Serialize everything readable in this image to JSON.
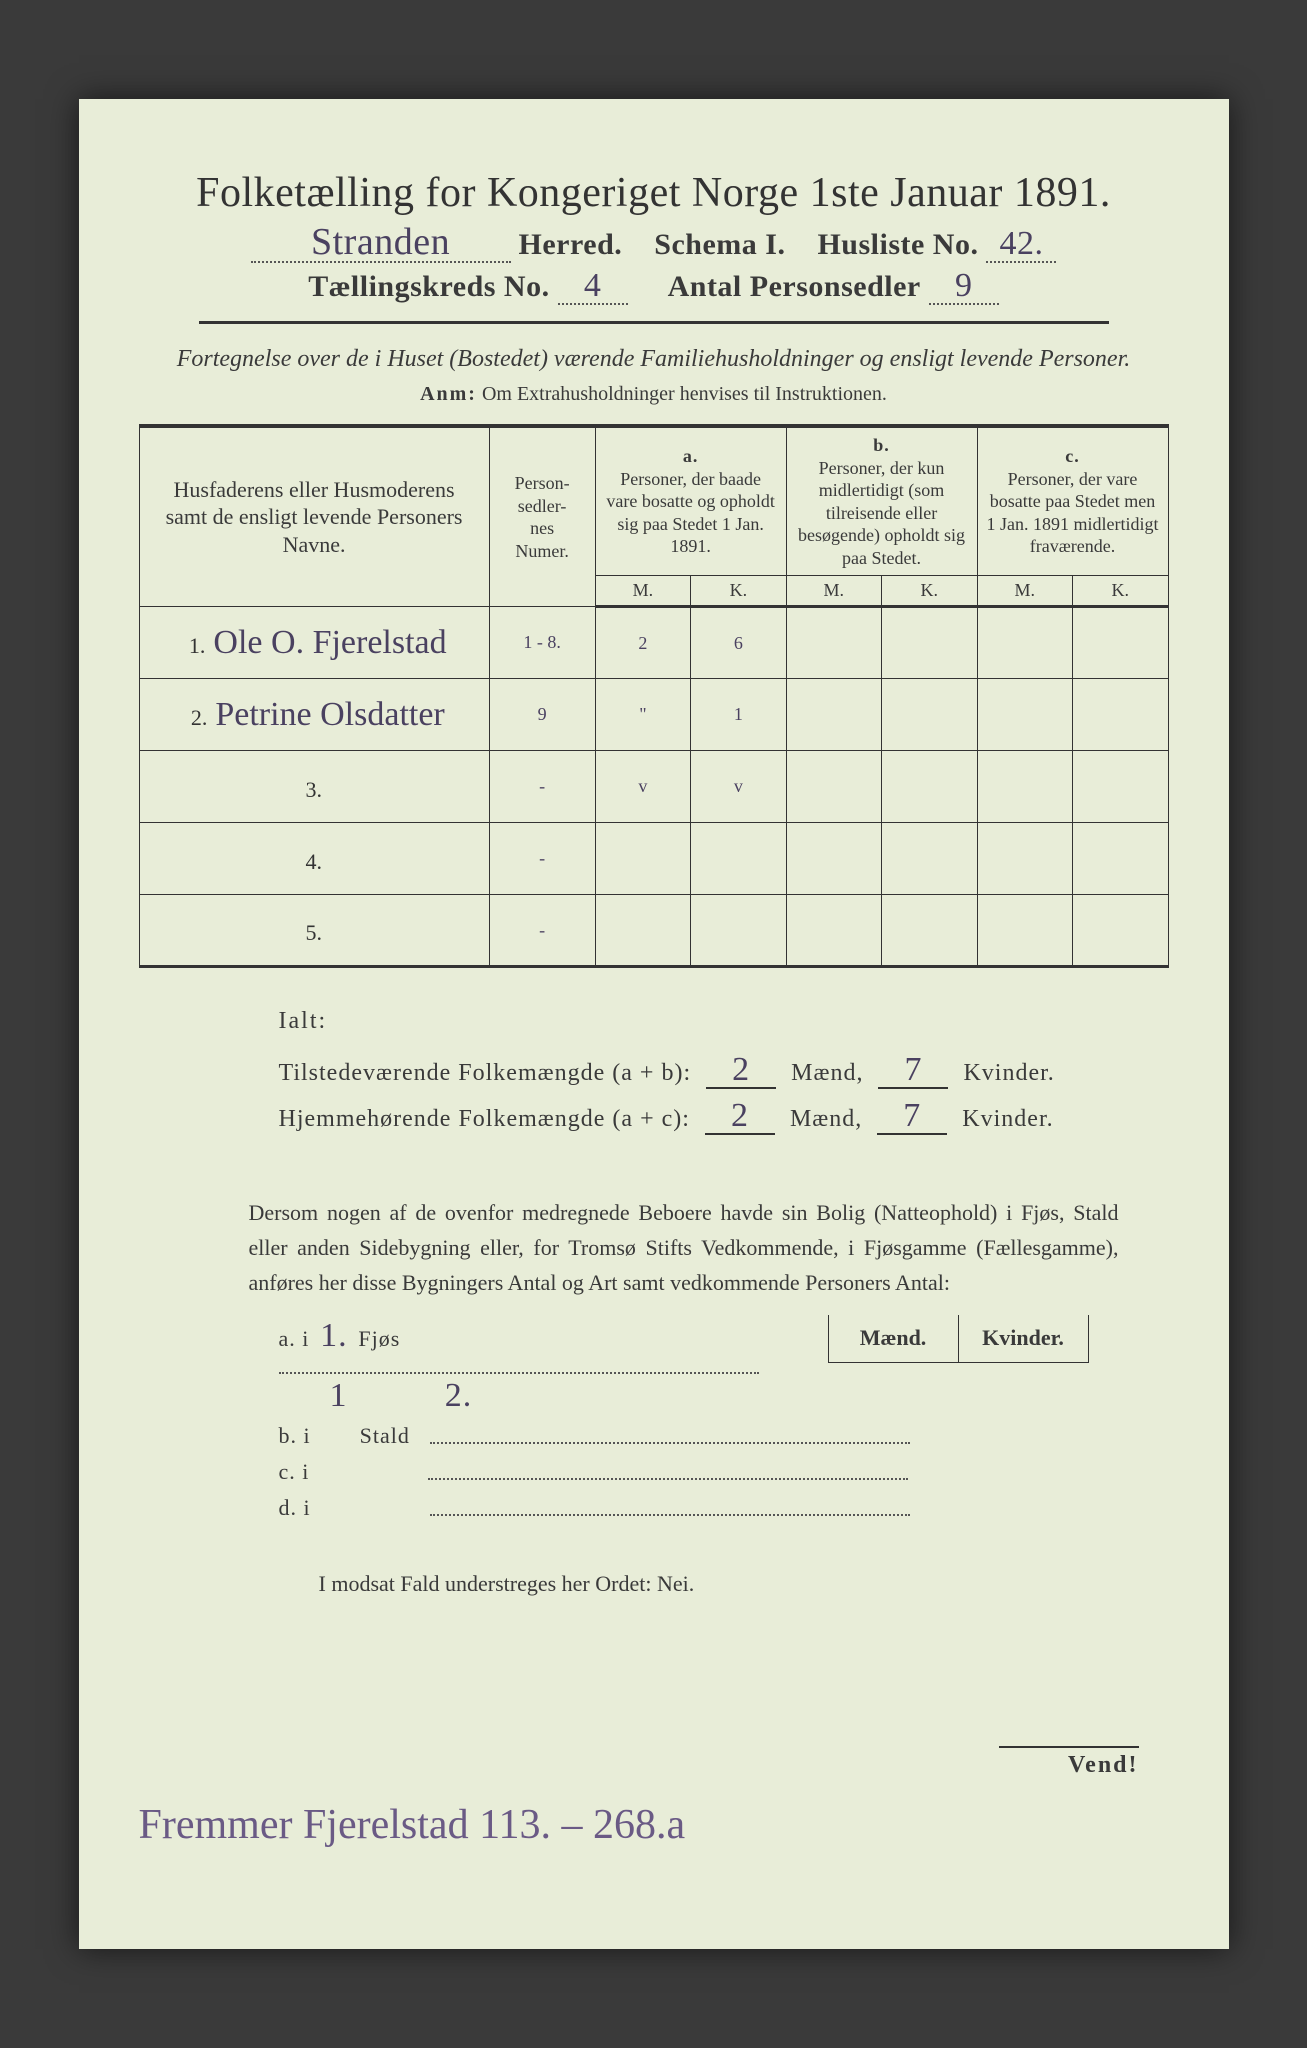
{
  "title": "Folketælling for Kongeriget Norge 1ste Januar 1891.",
  "header": {
    "herred_value": "Stranden",
    "herred_label": "Herred.",
    "schema_label": "Schema I.",
    "husliste_label": "Husliste No.",
    "husliste_value": "42.",
    "tk_label": "Tællingskreds No.",
    "tk_value": "4",
    "antal_label": "Antal Personsedler",
    "antal_value": "9"
  },
  "subtitle": "Fortegnelse over de i Huset (Bostedet) værende Familiehusholdninger og ensligt levende Personer.",
  "anm": {
    "label": "Anm:",
    "text": "Om Extrahusholdninger henvises til Instruktionen."
  },
  "table": {
    "col_name": "Husfaderens eller Husmoderens samt de ensligt levende Personers Navne.",
    "col_pnum": "Person-\nsedler-\nnes\nNumer.",
    "col_a_label": "a.",
    "col_a_text": "Personer, der baade vare bosatte og opholdt sig paa Stedet 1 Jan. 1891.",
    "col_b_label": "b.",
    "col_b_text": "Personer, der kun midlertidigt (som tilreisende eller besøgende) opholdt sig paa Stedet.",
    "col_c_label": "c.",
    "col_c_text": "Personer, der vare bosatte paa Stedet men 1 Jan. 1891 midlertidigt fraværende.",
    "m": "M.",
    "k": "K.",
    "rows": [
      {
        "n": "1.",
        "name": "Ole O. Fjerelstad",
        "pnum": "1 - 8.",
        "am": "2",
        "ak": "6",
        "bm": "",
        "bk": "",
        "cm": "",
        "ck": ""
      },
      {
        "n": "2.",
        "name": "Petrine Olsdatter",
        "pnum": "9",
        "am": "\"",
        "ak": "1",
        "bm": "",
        "bk": "",
        "cm": "",
        "ck": ""
      },
      {
        "n": "3.",
        "name": "",
        "pnum": "-",
        "am": "v",
        "ak": "v",
        "bm": "",
        "bk": "",
        "cm": "",
        "ck": ""
      },
      {
        "n": "4.",
        "name": "",
        "pnum": "-",
        "am": "",
        "ak": "",
        "bm": "",
        "bk": "",
        "cm": "",
        "ck": ""
      },
      {
        "n": "5.",
        "name": "",
        "pnum": "-",
        "am": "",
        "ak": "",
        "bm": "",
        "bk": "",
        "cm": "",
        "ck": ""
      }
    ]
  },
  "totals": {
    "ialt": "Ialt:",
    "line1_label": "Tilstedeværende Folkemængde (a + b):",
    "line2_label": "Hjemmehørende Folkemængde (a + c):",
    "maend": "Mænd,",
    "kvinder": "Kvinder.",
    "l1_m": "2",
    "l1_k": "7",
    "l2_m": "2",
    "l2_k": "7"
  },
  "para": "Dersom nogen af de ovenfor medregnede Beboere havde sin Bolig (Natteophold) i Fjøs, Stald eller anden Sidebygning eller, for Tromsø Stifts Vedkommende, i Fjøsgamme (Fællesgamme), anføres her disse Bygningers Antal og Art samt vedkommende Personers Antal:",
  "mk_mini": {
    "m": "Mænd.",
    "k": "Kvinder."
  },
  "abcd": {
    "rows": [
      {
        "pre": "a.  i",
        "count": "1.",
        "label": "Fjøs",
        "m": "1",
        "k": "2."
      },
      {
        "pre": "b.  i",
        "count": "",
        "label": "Stald",
        "m": "",
        "k": ""
      },
      {
        "pre": "c.  i",
        "count": "",
        "label": "",
        "m": "",
        "k": ""
      },
      {
        "pre": "d.  i",
        "count": "",
        "label": "",
        "m": "",
        "k": ""
      }
    ]
  },
  "nei": "I modsat Fald understreges her Ordet: Nei.",
  "vend": "Vend!",
  "footnote": "Fremmer Fjerelstad   113. – 268.a",
  "colors": {
    "paper": "#e8edd8",
    "ink": "#333333",
    "handwriting": "#4a4160",
    "page_bg": "#3a3a3a"
  }
}
